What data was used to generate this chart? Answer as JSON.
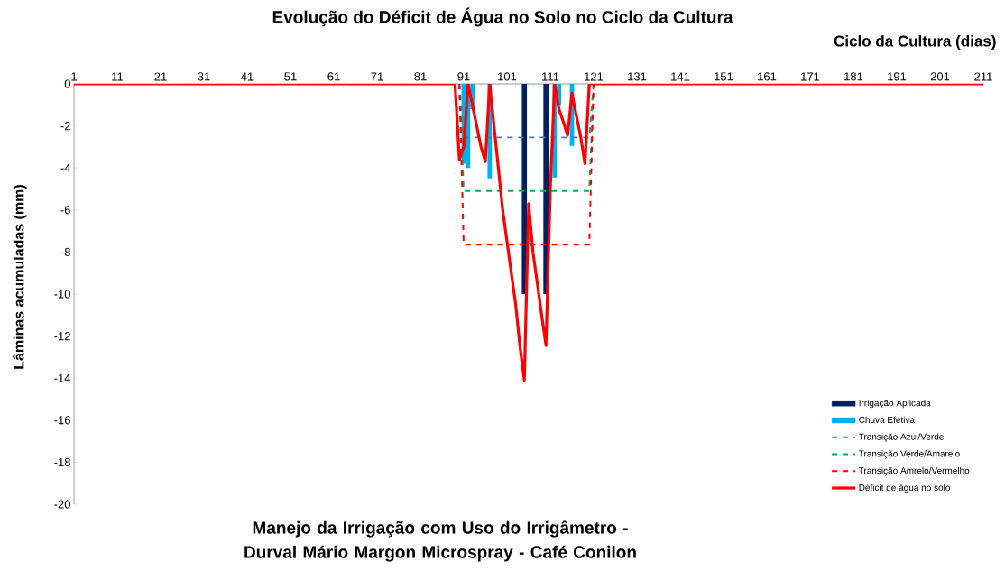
{
  "chart_data": {
    "type": "line",
    "title": "Evolução do Déficit de Água no Solo no Ciclo da Cultura",
    "subtitle": "Manejo da Irrigação com Uso do Irrigâmetro - Durval Mário Margon Microspray - Café Conilon",
    "xlabel": "Ciclo da Cultura (dias)",
    "ylabel": "Lâminas acumuladas (mm)",
    "xlim": [
      1,
      211
    ],
    "xticks": [
      1,
      11,
      21,
      31,
      41,
      51,
      61,
      71,
      81,
      91,
      101,
      111,
      121,
      131,
      141,
      151,
      161,
      171,
      181,
      191,
      201,
      211
    ],
    "ylim": [
      -20,
      0
    ],
    "yticks": [
      -20,
      -18,
      -16,
      -14,
      -12,
      -10,
      -8,
      -6,
      -4,
      -2,
      0
    ],
    "legend": "bottom right",
    "grid": false,
    "series": [
      {
        "name": "Irrigação Aplicada",
        "type": "bar",
        "color": "#002060",
        "x": [
          105,
          110
        ],
        "values": [
          -10,
          -10
        ]
      },
      {
        "name": "Chuva Efetiva",
        "type": "bar",
        "color": "#00b0f0",
        "x": [
          91,
          92,
          93,
          97,
          112,
          113,
          116
        ],
        "values": [
          -3.8,
          -4.0,
          -1.2,
          -4.5,
          -4.45,
          -1.0,
          -2.95
        ]
      },
      {
        "name": "Transição Azul/Verde",
        "line_style": "dashed",
        "color": "#4a7aa8",
        "x": [
          90,
          91,
          120,
          121
        ],
        "values": [
          0,
          -2.55,
          -2.55,
          0
        ]
      },
      {
        "name": "Transição Verde/Amarelo",
        "line_style": "dashed",
        "color": "#00b050",
        "x": [
          90,
          91,
          120,
          121
        ],
        "values": [
          0,
          -5.1,
          -5.1,
          0
        ]
      },
      {
        "name": "Transição Amrelo/Vermelho",
        "line_style": "dashed",
        "color": "#ff0000",
        "x": [
          90,
          91,
          120,
          121
        ],
        "values": [
          0,
          -7.65,
          -7.65,
          0
        ]
      },
      {
        "name": "Déficit de água no solo",
        "line_style": "solid",
        "color": "#ff0000",
        "x": [
          1,
          89,
          90,
          91,
          92,
          93,
          94,
          95,
          96,
          97,
          98,
          99,
          100,
          101,
          102,
          103,
          104,
          105,
          106,
          107,
          108,
          109,
          110,
          111,
          112,
          113,
          114,
          115,
          116,
          117,
          118,
          119,
          120,
          121,
          211
        ],
        "values": [
          0,
          0,
          -3.6,
          -3.0,
          0,
          -1.0,
          -2.0,
          -3.0,
          -3.7,
          0,
          -2.0,
          -4.0,
          -6.0,
          -7.5,
          -9.0,
          -10.5,
          -12.5,
          -14.1,
          -5.7,
          -8.0,
          -9.5,
          -11.0,
          -12.45,
          -5.0,
          0,
          -1.2,
          -1.8,
          -2.45,
          -0.45,
          -1.5,
          -2.5,
          -3.8,
          0,
          0,
          0
        ]
      }
    ]
  }
}
